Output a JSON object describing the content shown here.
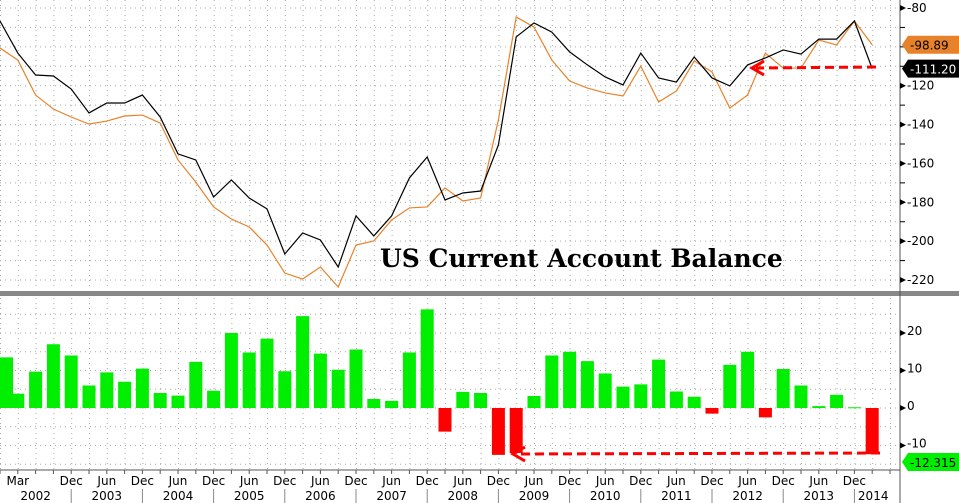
{
  "title": "US Current Account Balance",
  "colors": {
    "line_black": "#000000",
    "line_orange": "#e8822a",
    "bar_positive": "#00ee00",
    "bar_negative": "#ff0000",
    "arrow": "#ff0000",
    "separator": "#888888"
  },
  "chart_data": [
    {
      "type": "line",
      "title": "US Current Account Balance",
      "x_start": "Q4 2001",
      "x_end": "Q1 2014",
      "frequency": "quarterly",
      "ylim": [
        -225,
        -77
      ],
      "yticks": [
        "-80",
        "-120",
        "-140",
        "-160",
        "-180",
        "-200",
        "-220"
      ],
      "grid": true,
      "series": [
        {
          "color": "#000000",
          "last_label": "-111.20",
          "values": [
            -86.7,
            -103.2,
            -114.5,
            -115,
            -121.7,
            -134,
            -128.9,
            -128.9,
            -124.8,
            -136.1,
            -155.1,
            -158.2,
            -177.3,
            -168.5,
            -177.8,
            -183.4,
            -206.6,
            -195.8,
            -199.4,
            -213.3,
            -187,
            -197.3,
            -187,
            -167.5,
            -156.7,
            -178.8,
            -175.2,
            -174.2,
            -150.5,
            -94.9,
            -87.7,
            -92.4,
            -102.6,
            -109.3,
            -115.5,
            -119.6,
            -103.2,
            -116,
            -118.1,
            -105.2,
            -116,
            -120.1,
            -109.3,
            -105.7,
            -101.6,
            -103.7,
            -96,
            -96,
            -86.7,
            -111.2
          ]
        },
        {
          "color": "#e8822a",
          "last_label": "-98.89",
          "values": [
            -100.6,
            -106.8,
            -124.8,
            -132,
            -136.1,
            -139.7,
            -138.2,
            -135.6,
            -135.1,
            -139.2,
            -158.2,
            -169.6,
            -182.4,
            -188.6,
            -192.7,
            -202,
            -216.4,
            -219.5,
            -213.3,
            -223.6,
            -202,
            -199.9,
            -189.1,
            -182.9,
            -182.4,
            -172.6,
            -179.3,
            -177.8,
            -137.6,
            -84.6,
            -89.8,
            -106.8,
            -117.6,
            -121.2,
            -123.7,
            -125.3,
            -109.9,
            -128.4,
            -122.7,
            -107.3,
            -112.9,
            -131.5,
            -124.8,
            -103.2,
            -110.9,
            -110.9,
            -96.5,
            -99,
            -86.7,
            -98.89
          ]
        }
      ]
    },
    {
      "type": "bar",
      "ylim": [
        -17,
        29
      ],
      "yticks": [
        "20",
        "10",
        "0",
        "-10"
      ],
      "grid": true,
      "last_label": "-12.315",
      "values": [
        13.5,
        3.8,
        9.7,
        17,
        14,
        6,
        9.5,
        7,
        10.5,
        4,
        3.3,
        12.3,
        4.6,
        20,
        14.8,
        18.5,
        9.8,
        24.5,
        14.5,
        10.2,
        15.6,
        2.4,
        1.9,
        14.8,
        26.3,
        -6.3,
        4.3,
        4,
        -12.5,
        -12,
        3.2,
        14,
        15,
        12.5,
        9.2,
        5.7,
        6.3,
        12.9,
        4.4,
        3,
        -1.5,
        11.5,
        15,
        -2.5,
        10.4,
        6,
        0.5,
        3.5,
        0.2,
        -12.315
      ]
    }
  ],
  "x_axis": {
    "months": [
      {
        "label": "Mar",
        "q": 1
      },
      {
        "label": "Dec",
        "q": 4
      },
      {
        "label": "Jun",
        "q": 6
      },
      {
        "label": "Dec",
        "q": 8
      },
      {
        "label": "Jun",
        "q": 10
      },
      {
        "label": "Dec",
        "q": 12
      },
      {
        "label": "Jun",
        "q": 14
      },
      {
        "label": "Dec",
        "q": 16
      },
      {
        "label": "Jun",
        "q": 18
      },
      {
        "label": "Dec",
        "q": 20
      },
      {
        "label": "Jun",
        "q": 22
      },
      {
        "label": "Dec",
        "q": 24
      },
      {
        "label": "Jun",
        "q": 26
      },
      {
        "label": "Dec",
        "q": 28
      },
      {
        "label": "Jun",
        "q": 30
      },
      {
        "label": "Dec",
        "q": 32
      },
      {
        "label": "Jun",
        "q": 34
      },
      {
        "label": "Dec",
        "q": 36
      },
      {
        "label": "Jun",
        "q": 38
      },
      {
        "label": "Dec",
        "q": 40
      },
      {
        "label": "Jun",
        "q": 42
      },
      {
        "label": "Dec",
        "q": 44
      },
      {
        "label": "Jun",
        "q": 46
      },
      {
        "label": "Dec",
        "q": 48
      }
    ],
    "years": [
      "2002",
      "2003",
      "2004",
      "2005",
      "2006",
      "2007",
      "2008",
      "2009",
      "2010",
      "2011",
      "2012",
      "2013",
      "2014"
    ]
  },
  "annotations": [
    "top arrow from last black point back to Q2 2012",
    "bottom arrow from last bar back to Q4 2008"
  ]
}
